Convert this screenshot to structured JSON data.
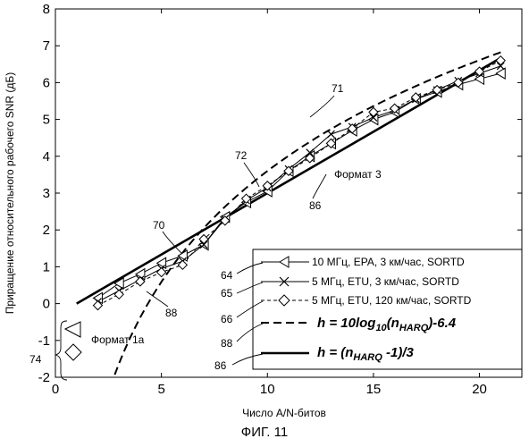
{
  "chart_data": {
    "type": "line",
    "xlabel": "Число A/N-битов",
    "ylabel": "Приращение относительного рабочего SNR (дБ)",
    "xlim": [
      0,
      22
    ],
    "ylim": [
      -2,
      8
    ],
    "x_ticks": [
      "0",
      "5",
      "10",
      "15",
      "20"
    ],
    "y_ticks": [
      "-2",
      "-1",
      "0",
      "1",
      "2",
      "3",
      "4",
      "5",
      "6",
      "7",
      "8"
    ],
    "series": [
      {
        "name": "10 МГц, EPA, 3 км/час, SORTD",
        "marker": "triangle-left",
        "style": "solid-thin",
        "x": [
          2,
          3,
          4,
          5,
          6,
          7,
          8,
          9,
          10,
          11,
          12,
          13,
          14,
          15,
          16,
          17,
          18,
          19,
          20,
          21
        ],
        "y": [
          0.15,
          0.55,
          0.8,
          1.1,
          1.3,
          1.6,
          2.35,
          2.75,
          3.05,
          3.6,
          4.0,
          4.35,
          4.7,
          5.0,
          5.2,
          5.55,
          5.75,
          5.95,
          6.1,
          6.25
        ]
      },
      {
        "name": "5 МГц, ETU, 3 км/час, SORTD",
        "marker": "x",
        "style": "solid-thin",
        "x": [
          2,
          3,
          4,
          5,
          6,
          7,
          8,
          9,
          10,
          11,
          12,
          13,
          14,
          15,
          16,
          17,
          18,
          19,
          20,
          21
        ],
        "y": [
          0.05,
          0.35,
          0.65,
          0.95,
          1.15,
          1.6,
          2.3,
          2.8,
          3.15,
          3.65,
          4.1,
          4.6,
          4.8,
          5.05,
          5.25,
          5.55,
          5.8,
          6.05,
          6.25,
          6.45
        ]
      },
      {
        "name": "5 МГц, ETU, 120 км/час, SORTD",
        "marker": "diamond",
        "style": "dashed-thin",
        "x": [
          2,
          3,
          4,
          5,
          6,
          7,
          8,
          9,
          10,
          11,
          12,
          13,
          14,
          15,
          16,
          17,
          18,
          19,
          20,
          21
        ],
        "y": [
          -0.05,
          0.25,
          0.6,
          0.85,
          1.05,
          1.75,
          2.25,
          2.85,
          3.2,
          3.6,
          3.95,
          4.35,
          4.75,
          5.2,
          5.3,
          5.6,
          5.8,
          6.0,
          6.3,
          6.6
        ]
      }
    ],
    "formula_curves": [
      {
        "kind": "log",
        "style": "dashed-thick",
        "label_main": "h = 10log",
        "label_sub": "10",
        "label_tail": "(n",
        "label_sub2": "HARQ",
        "label_end": ")-6.4"
      },
      {
        "kind": "linear",
        "style": "solid-thick",
        "label_main": "h = (n",
        "label_sub": "HARQ",
        "label_end": " -1)/3"
      }
    ],
    "annotations": {
      "format3": "Формат 3",
      "format1a": "Формат 1a",
      "numbers": [
        "70",
        "71",
        "72",
        "86",
        "88",
        "64",
        "65",
        "66",
        "88",
        "86",
        "74"
      ]
    },
    "grid": false,
    "legend_position": "bottom-right"
  },
  "figure_caption": "ФИГ. 11"
}
